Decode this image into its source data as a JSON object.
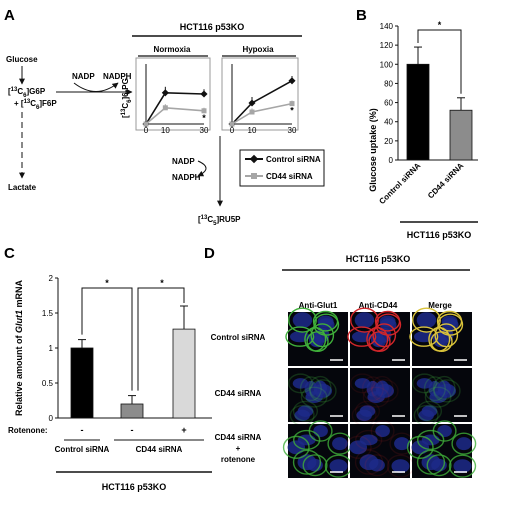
{
  "panel_a": {
    "label": "A",
    "header": "HCT116 p53KO",
    "pathway": {
      "glucose": "Glucose",
      "g6p": "[13C6]G6P",
      "f6p": "+ [13C6]F6P",
      "nadp_top": "NADP",
      "nadph_top": "NADPH",
      "nadp_bottom": "NADP",
      "nadph_bottom": "NADPH",
      "lactate": "Lactate",
      "ru5p": "[13C5]RU5P"
    },
    "legend": [
      "Control siRNA",
      "CD44 siRNA"
    ]
  },
  "panel_b": {
    "label": "B",
    "group_label": "HCT116 p53KO",
    "sig": "*"
  },
  "panel_c": {
    "label": "C",
    "rotenone_label": "Rotenone:",
    "rotenone_marks": [
      "-",
      "-",
      "+"
    ],
    "group_labels": [
      "Control siRNA",
      "CD44 siRNA"
    ],
    "footer": "HCT116 p53KO",
    "sig": [
      "*",
      "*"
    ]
  },
  "panel_d": {
    "label": "D",
    "header": "HCT116 p53KO",
    "columns": [
      "Anti-Glut1",
      "Anti-CD44",
      "Merge"
    ],
    "rows": [
      "Control siRNA",
      "CD44 siRNA",
      "CD44 siRNA",
      "+",
      "rotenone"
    ]
  },
  "chart_data": [
    {
      "id": "A-normoxia",
      "type": "line",
      "title": "Normoxia",
      "ylabel": "[13C6]6-PG",
      "x": [
        0,
        10,
        30
      ],
      "series": [
        {
          "name": "Control siRNA",
          "values": [
            0,
            0.52,
            0.5
          ]
        },
        {
          "name": "CD44 siRNA",
          "values": [
            0,
            0.27,
            0.22
          ]
        }
      ],
      "ylim": [
        0,
        1
      ],
      "annotation": "*",
      "color_control": "#111111",
      "color_cd44": "#a6a6a6"
    },
    {
      "id": "A-hypoxia",
      "type": "line",
      "title": "Hypoxia",
      "x": [
        0,
        10,
        30
      ],
      "series": [
        {
          "name": "Control siRNA",
          "values": [
            0,
            0.35,
            0.72
          ]
        },
        {
          "name": "CD44 siRNA",
          "values": [
            0,
            0.2,
            0.34
          ]
        }
      ],
      "ylim": [
        0,
        1
      ],
      "annotation": "*"
    },
    {
      "id": "B",
      "type": "bar",
      "categories": [
        "Control siRNA",
        "CD44 siRNA"
      ],
      "values": [
        100,
        52
      ],
      "errors": [
        18,
        13
      ],
      "ylabel": "Glucose uptake (%)",
      "ylim": [
        0,
        140
      ],
      "yticks": [
        0,
        20,
        40,
        60,
        80,
        100,
        120,
        140
      ],
      "colors": [
        "#000000",
        "#8c8c8c"
      ]
    },
    {
      "id": "C",
      "type": "bar",
      "categories": [
        "Control siRNA",
        "CD44 siRNA",
        "CD44 siRNA + rotenone"
      ],
      "values": [
        1.0,
        0.2,
        1.27
      ],
      "errors": [
        0.12,
        0.12,
        0.33
      ],
      "ylabel": "Relative amount of Glut1 mRNA",
      "ylim": [
        0,
        2
      ],
      "yticks": [
        0,
        0.5,
        1,
        1.5,
        2
      ],
      "colors": [
        "#000000",
        "#8c8c8c",
        "#d9d9d9"
      ]
    }
  ]
}
